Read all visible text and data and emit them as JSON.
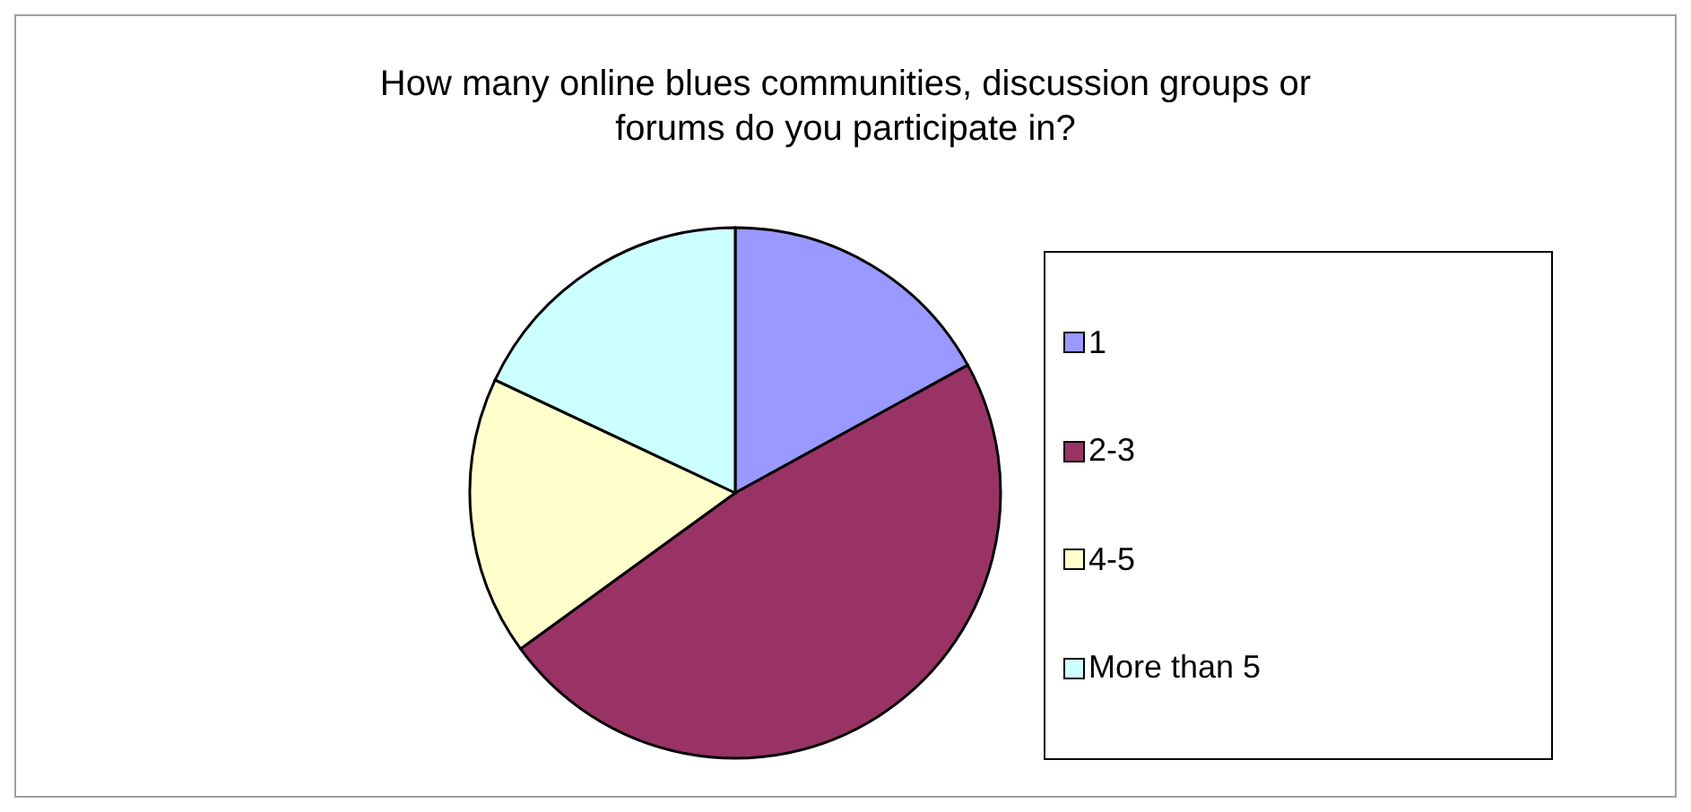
{
  "chart_data": {
    "type": "pie",
    "title": "How many online blues communities, discussion groups or forums do you participate in?",
    "categories": [
      "1",
      "2-3",
      "4-5",
      "More than 5"
    ],
    "values": [
      17,
      48,
      17,
      18
    ],
    "colors": [
      "#9999ff",
      "#993366",
      "#ffffcc",
      "#ccffff"
    ],
    "legend": "right"
  }
}
